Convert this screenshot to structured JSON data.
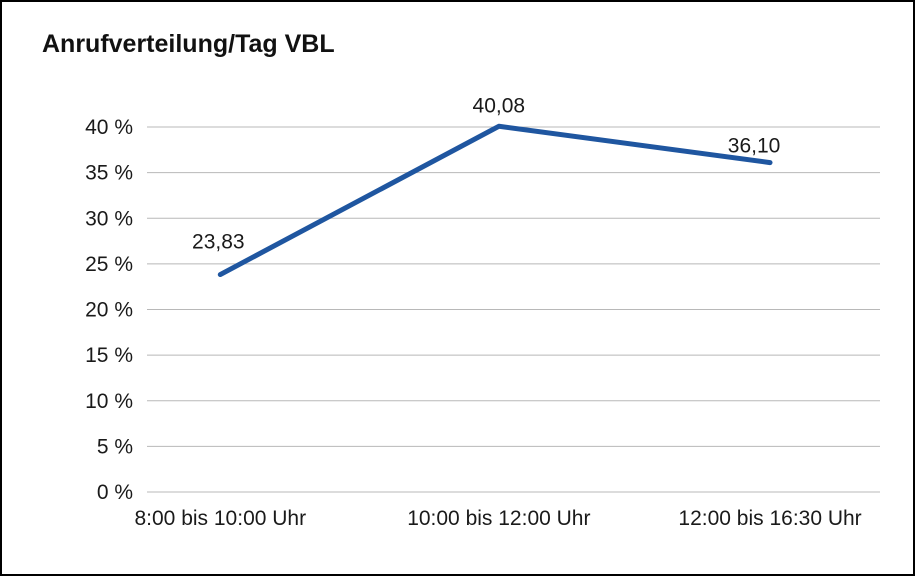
{
  "chart_data": {
    "type": "line",
    "title": "Anrufverteilung/Tag VBL",
    "categories": [
      "8:00 bis 10:00 Uhr",
      "10:00 bis 12:00 Uhr",
      "12:00 bis 16:30 Uhr"
    ],
    "values": [
      23.83,
      40.08,
      36.1
    ],
    "value_labels": [
      "23,83",
      "40,08",
      "36,10"
    ],
    "xlabel": "",
    "ylabel": "",
    "ylim": [
      0,
      40
    ],
    "ytick_step": 5,
    "ytick_labels": [
      "0 %",
      "5 %",
      "10 %",
      "15 %",
      "20 %",
      "25 %",
      "30 %",
      "35 %",
      "40 %"
    ],
    "grid": true,
    "legend": "none",
    "line_color": "#1f56a0",
    "grid_color": "#b8b8b8",
    "text_color": "#1a1a1a"
  }
}
